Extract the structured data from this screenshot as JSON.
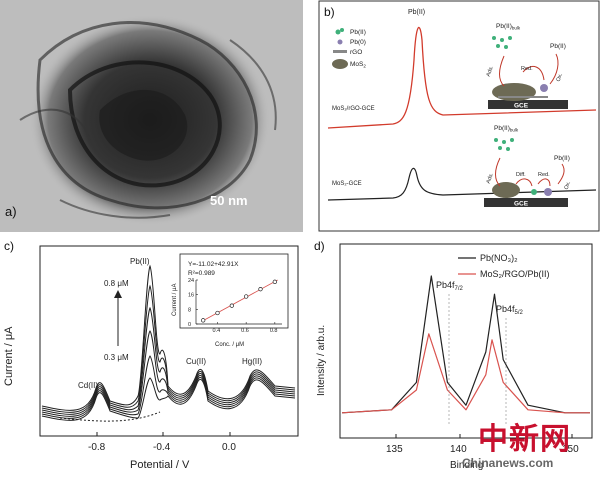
{
  "figure": {
    "panel_a": {
      "label": "a)",
      "scale_bar": "50 nm"
    },
    "panel_b": {
      "label": "b)",
      "peak_label": "Pb(II)",
      "legend": [
        {
          "name": "Pb(II)",
          "color": "#3fb07a"
        },
        {
          "name": "Pb(0)",
          "color": "#8a7fb0"
        },
        {
          "name": "rGO",
          "color": "#888888"
        },
        {
          "name": "MoS",
          "sub": "2",
          "color": "#6d6a55"
        }
      ],
      "curve_top_label": "MoS₂/rGO-GCE",
      "curve_bottom_label": "MoS₂-GCE",
      "schematic_top": {
        "bulk": "Pb(II)",
        "bulk_sub": "bulk",
        "pb_ii": "Pb(II)",
        "steps": [
          "Ads.",
          "Red.",
          "Ox."
        ],
        "electrode": "GCE"
      },
      "schematic_bottom": {
        "bulk": "Pb(II)",
        "bulk_sub": "bulk",
        "pb_ii": "Pb(II)",
        "steps": [
          "Ads.",
          "Diff.",
          "Red.",
          "Ox."
        ],
        "electrode": "GCE"
      }
    },
    "panel_c": {
      "label": "c)",
      "xlabel": "Potential / V",
      "ylabel": "Current / μA",
      "xticks": [
        "-0.8",
        "-0.4",
        "0.0"
      ],
      "peaks": [
        "Cd(II)",
        "Pb(II)",
        "Cu(II)",
        "Hg(II)"
      ],
      "conc_high": "0.8 μM",
      "conc_low": "0.3 μM",
      "inset": {
        "equation": "Y=-11.02+42.91X",
        "r2": "R²=0.989",
        "xlabel": "Conc. / μM",
        "ylabel": "Current / μA",
        "xticks": [
          "0.4",
          "0.6",
          "0.8"
        ],
        "yticks": [
          "0",
          "8",
          "16",
          "24"
        ]
      }
    },
    "panel_d": {
      "label": "d)",
      "xlabel": "Binding",
      "ylabel": "Intensity / arb.u.",
      "xticks": [
        "135",
        "140",
        "150"
      ],
      "legend": [
        {
          "name": "Pb(NO₃)₂",
          "color": "#222222"
        },
        {
          "name": "MoS₂/RGO/Pb(II)",
          "color": "#d9534f"
        }
      ],
      "peak_left": "Pb4f",
      "peak_left_sub": "7/2",
      "peak_right": "Pb4f",
      "peak_right_sub": "5/2"
    },
    "watermark": "中新网",
    "watermark_url": "Chinanews.com"
  },
  "chart_data": [
    {
      "type": "line",
      "panel": "c",
      "xlabel": "Potential / V",
      "ylabel": "Current / μA",
      "xlim": [
        -1.0,
        0.3
      ],
      "series": [
        {
          "name": "",
          "x": [
            -1.0,
            -0.85,
            -0.8,
            -0.75,
            -0.6,
            -0.52,
            -0.5,
            -0.48,
            -0.44,
            -0.42,
            -0.38,
            -0.3,
            -0.2,
            -0.1,
            0.0,
            0.1,
            0.15,
            0.3
          ],
          "y": [
            1.0,
            0.8,
            1.8,
            0.9,
            1.0,
            3.0,
            5.0,
            3.0,
            1.5,
            2.0,
            1.0,
            1.0,
            2.0,
            1.0,
            1.0,
            1.6,
            1.4,
            1.0
          ]
        }
      ]
    },
    {
      "type": "scatter",
      "panel": "c-inset",
      "xlabel": "Conc. / μM",
      "ylabel": "Current / μA",
      "xlim": [
        0.25,
        0.85
      ],
      "ylim": [
        0,
        24
      ],
      "x": [
        0.3,
        0.4,
        0.5,
        0.6,
        0.7,
        0.8
      ],
      "y": [
        2.0,
        6.0,
        10.0,
        15.0,
        19.0,
        23.0
      ],
      "fit": {
        "slope": 42.91,
        "intercept": -11.02
      }
    },
    {
      "type": "line",
      "panel": "d",
      "xlabel": "Binding",
      "ylabel": "Intensity / arb.u.",
      "xlim": [
        132,
        152
      ],
      "series": [
        {
          "name": "Pb(NO₃)₂",
          "x": [
            132,
            136,
            138,
            139.2,
            140.5,
            142,
            143.6,
            144.3,
            145,
            147,
            150,
            152
          ],
          "y": [
            0.1,
            0.12,
            0.3,
            1.0,
            0.3,
            0.15,
            0.5,
            0.88,
            0.45,
            0.15,
            0.1,
            0.1
          ]
        },
        {
          "name": "MoS₂/RGO/Pb(II)",
          "x": [
            132,
            136,
            138,
            139.0,
            140.5,
            142,
            143.6,
            144.1,
            145,
            147,
            150,
            152
          ],
          "y": [
            0.1,
            0.12,
            0.25,
            0.62,
            0.25,
            0.12,
            0.35,
            0.58,
            0.3,
            0.12,
            0.1,
            0.1
          ]
        }
      ]
    }
  ]
}
